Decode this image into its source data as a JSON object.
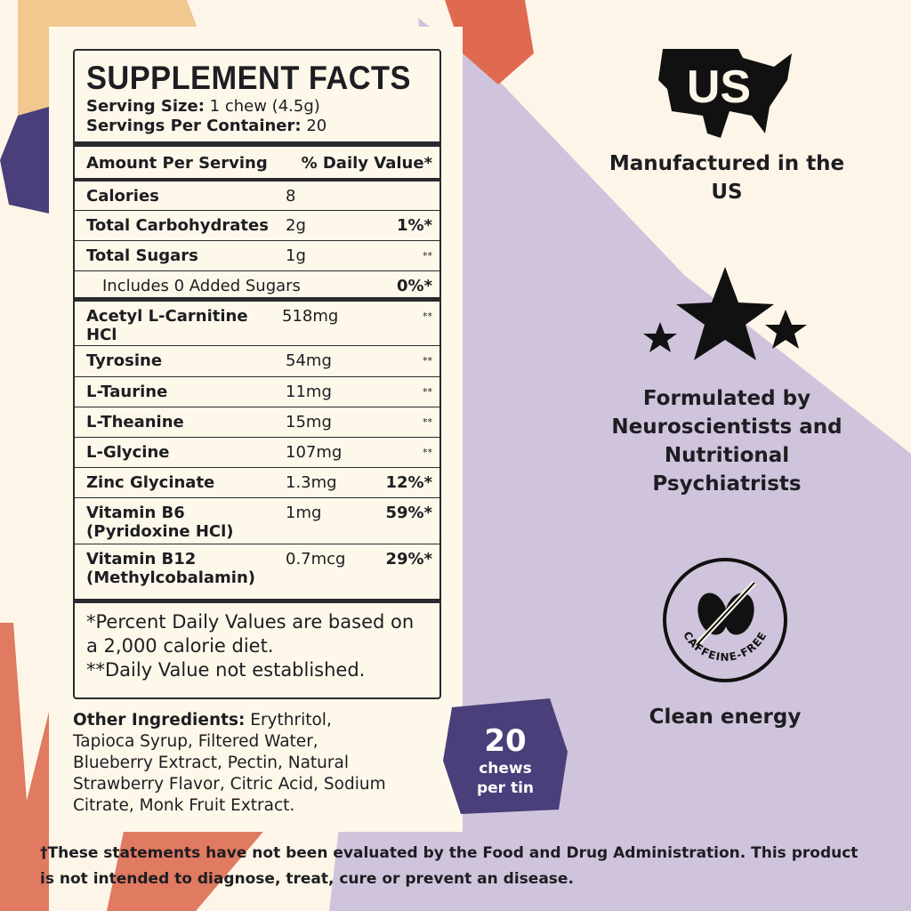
{
  "colors": {
    "background": "#fdf6e8",
    "purple_shape": "#d0c4dc",
    "orange": "#e06a50",
    "peach": "#f0c890",
    "indigo": "#4a3f7a",
    "ink": "#1d1d22"
  },
  "label": {
    "title": "SUPPLEMENT FACTS",
    "serving_size_label": "Serving Size:",
    "serving_size": "1 chew (4.5g)",
    "servings_label": "Servings Per Container:",
    "servings": "20",
    "header_amount": "Amount Per Serving",
    "header_dv": "% Daily Value*",
    "rows": [
      {
        "name": "Calories",
        "amount": "8",
        "dv": ""
      },
      {
        "name": "Total Carbohydrates",
        "amount": "2g",
        "dv": "1%*"
      },
      {
        "name": "Total Sugars",
        "amount": "1g",
        "dv": "**"
      },
      {
        "name": "Includes 0 Added Sugars",
        "amount": "",
        "dv": "0%*"
      },
      {
        "name": "Acetyl L-Carnitine HCl",
        "amount": "518mg",
        "dv": "**"
      },
      {
        "name": "Tyrosine",
        "amount": "54mg",
        "dv": "**"
      },
      {
        "name": "L-Taurine",
        "amount": "11mg",
        "dv": "**"
      },
      {
        "name": "L-Theanine",
        "amount": "15mg",
        "dv": "**"
      },
      {
        "name": "L-Glycine",
        "amount": "107mg",
        "dv": "**"
      },
      {
        "name": "Zinc Glycinate",
        "amount": "1.3mg",
        "dv": "12%*"
      },
      {
        "name": "Vitamin B6 (Pyridoxine HCl)",
        "amount": "1mg",
        "dv": "59%*"
      },
      {
        "name": "Vitamin B12 (Methylcobalamin)",
        "amount": "0.7mcg",
        "dv": "29%*"
      }
    ],
    "footnote1": "*Percent Daily Values are based on a 2,000 calorie diet.",
    "footnote2": "**Daily Value not established."
  },
  "other_ingredients": {
    "label": "Other Ingredients:",
    "text": "Erythritol, Tapioca Syrup, Filtered Water, Blueberry Extract, Pectin, Natural Strawberry Flavor, Citric Acid, Sodium Citrate, Monk Fruit Extract."
  },
  "badge": {
    "count": "20",
    "line1": "chews",
    "line2": "per tin"
  },
  "features": [
    {
      "icon": "us-map-icon",
      "logo_text": "US",
      "text": "Manufactured in the US"
    },
    {
      "icon": "stars-icon",
      "text": "Formulated by Neuroscientists and Nutritional Psychiatrists"
    },
    {
      "icon": "caffeine-free-icon",
      "logo_text": "CAFFEINE-FREE",
      "text": "Clean energy"
    }
  ],
  "disclaimer": "†These statements have not been evaluated by the Food and Drug Administration. This product is not intended to diagnose, treat, cure or prevent an disease."
}
